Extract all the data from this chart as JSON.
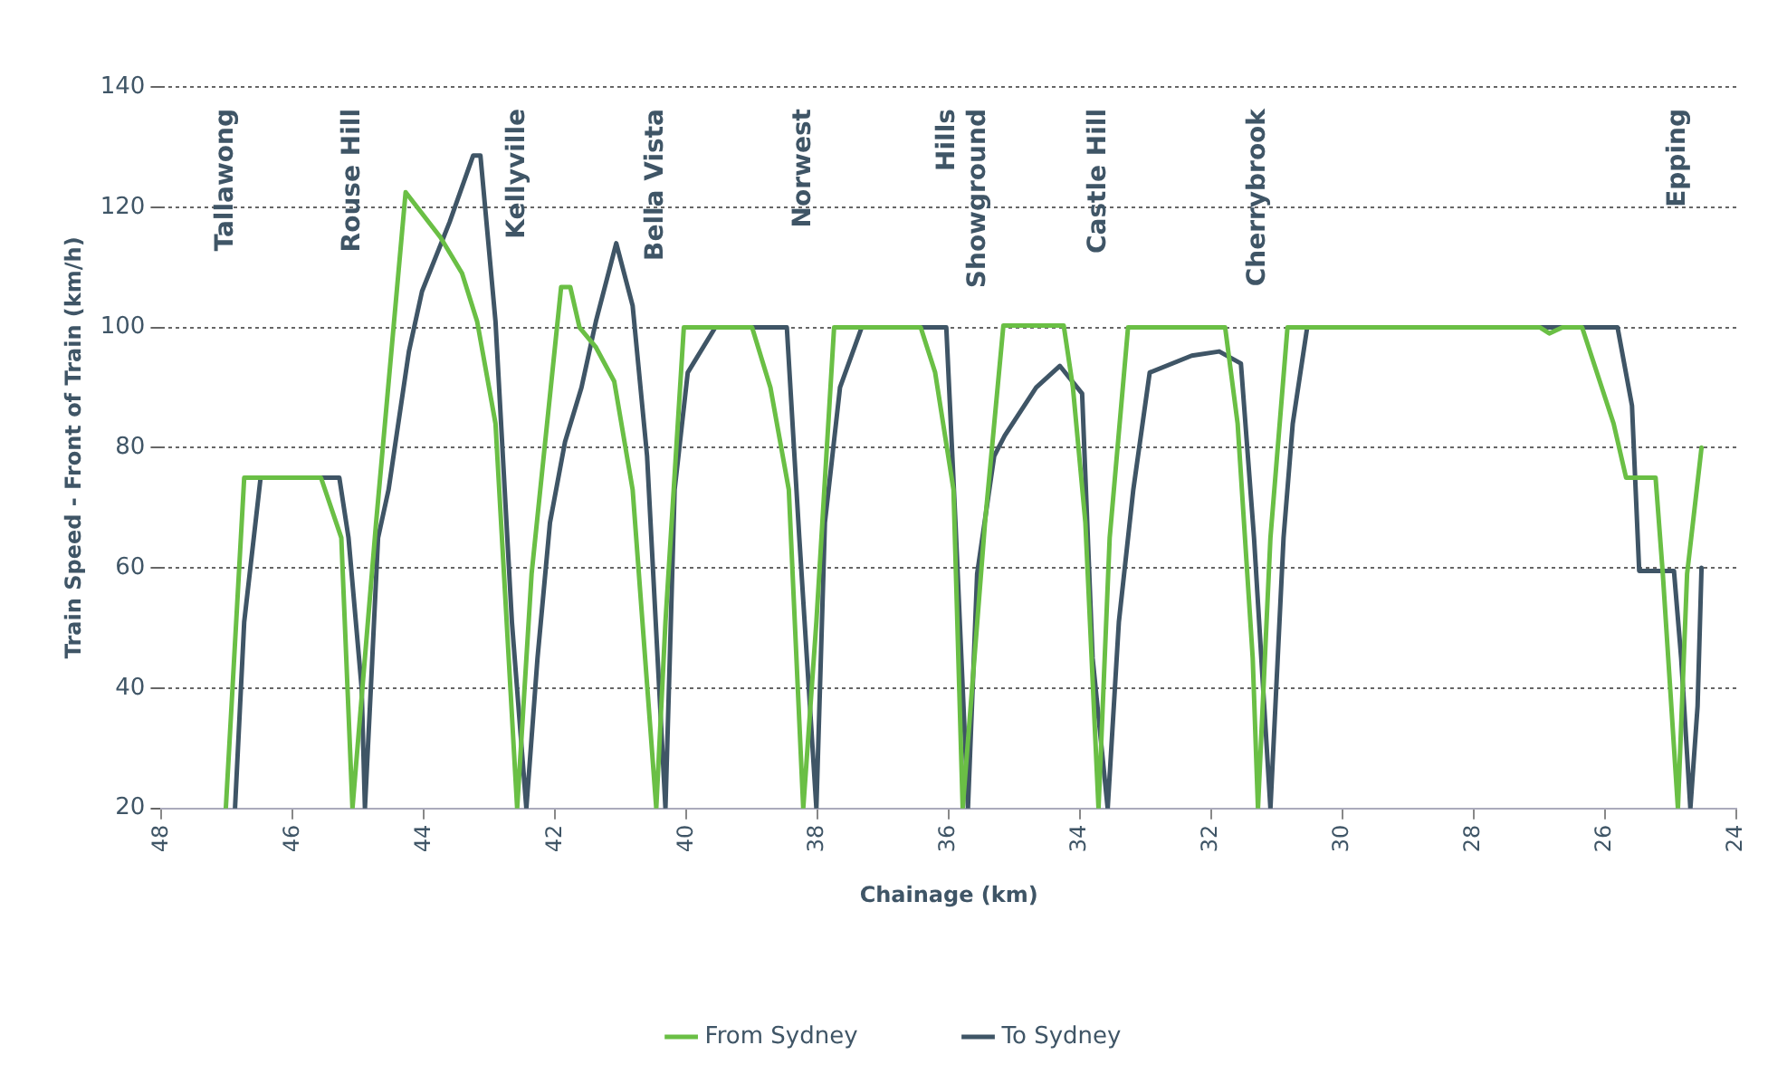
{
  "chart_data": {
    "type": "line",
    "xlabel": "Chainage (km)",
    "ylabel": "Train Speed - Front of Train (km/h)",
    "xlim": [
      48,
      24
    ],
    "xticks": [
      48,
      46,
      44,
      42,
      40,
      38,
      36,
      34,
      32,
      30,
      28,
      26,
      24
    ],
    "ylim": [
      20,
      140
    ],
    "yticks": [
      20,
      40,
      60,
      80,
      100,
      120,
      140
    ],
    "grid": "y",
    "legend": "bottom",
    "marker": "none",
    "line_style": "solid",
    "annotations": [
      "Tallawong",
      "Rouse Hill",
      "Kellyville",
      "Bella Vista",
      "Norwest",
      "Hills\nShowground",
      "Castle Hill",
      "Cherrybrook",
      "Epping"
    ],
    "series": [
      {
        "name": "From Sydney",
        "color": "#6abf45",
        "x": [
          47.02,
          46.74,
          45.57,
          45.26,
          45.09,
          44.73,
          44.28,
          43.75,
          43.42,
          43.19,
          42.91,
          42.58,
          42.36,
          41.91,
          41.77,
          41.63,
          41.38,
          41.1,
          40.82,
          40.46,
          40.32,
          40.04,
          39.0,
          38.72,
          38.44,
          38.22,
          38.02,
          37.75,
          36.43,
          36.21,
          35.93,
          35.79,
          35.45,
          35.17,
          34.25,
          34.11,
          33.92,
          33.72,
          33.55,
          33.27,
          31.79,
          31.6,
          31.37,
          31.29,
          31.1,
          30.84,
          26.99,
          26.85,
          26.65,
          26.35,
          25.87,
          25.68,
          25.23,
          25.12,
          24.89,
          24.75,
          24.53
        ],
        "values": [
          20,
          75,
          75,
          65,
          20,
          67.5,
          122.5,
          115,
          109,
          101,
          84,
          20,
          59,
          106.7,
          106.7,
          100,
          96.7,
          91,
          73,
          20,
          51,
          100,
          100,
          90,
          73,
          20,
          51,
          100,
          100,
          92.5,
          73,
          20,
          67.5,
          100.3,
          100.3,
          90,
          67.5,
          20,
          65,
          100,
          100,
          84,
          45,
          20,
          65,
          100,
          100,
          99,
          100,
          100,
          84,
          75,
          75,
          59,
          20,
          59,
          80
        ]
      },
      {
        "name": "To Sydney",
        "color": "#3f5566",
        "x": [
          46.88,
          46.74,
          46.49,
          45.29,
          45.15,
          44.95,
          44.9,
          44.81,
          44.7,
          44.54,
          44.23,
          44.03,
          43.61,
          43.25,
          43.14,
          42.91,
          42.66,
          42.44,
          42.27,
          42.08,
          41.85,
          41.6,
          41.38,
          41.07,
          40.82,
          40.6,
          40.32,
          40.18,
          39.98,
          39.56,
          38.47,
          38.28,
          38.02,
          37.89,
          37.66,
          37.33,
          36.04,
          35.9,
          35.71,
          35.57,
          35.31,
          35.15,
          34.67,
          34.31,
          33.97,
          33.81,
          33.58,
          33.41,
          33.19,
          32.94,
          32.3,
          31.88,
          31.55,
          31.35,
          31.1,
          30.9,
          30.76,
          30.54,
          25.81,
          25.59,
          25.48,
          24.95,
          24.84,
          24.7,
          24.59,
          24.53
        ],
        "values": [
          20,
          51,
          75,
          75,
          65,
          40,
          20,
          40,
          65,
          73,
          96,
          106,
          117.5,
          128.6,
          128.6,
          101,
          51,
          20,
          45,
          67.5,
          81,
          90,
          101,
          114,
          103.6,
          78.6,
          20,
          73,
          92.5,
          100,
          100,
          65,
          20,
          67.5,
          90,
          100,
          100,
          67.5,
          20,
          59,
          78.6,
          82,
          90,
          93.6,
          89,
          45,
          20,
          51,
          73,
          92.5,
          95.3,
          96,
          94,
          65,
          20,
          65,
          84,
          100,
          100,
          87,
          59.5,
          59.5,
          45,
          20,
          37,
          60
        ]
      }
    ]
  }
}
